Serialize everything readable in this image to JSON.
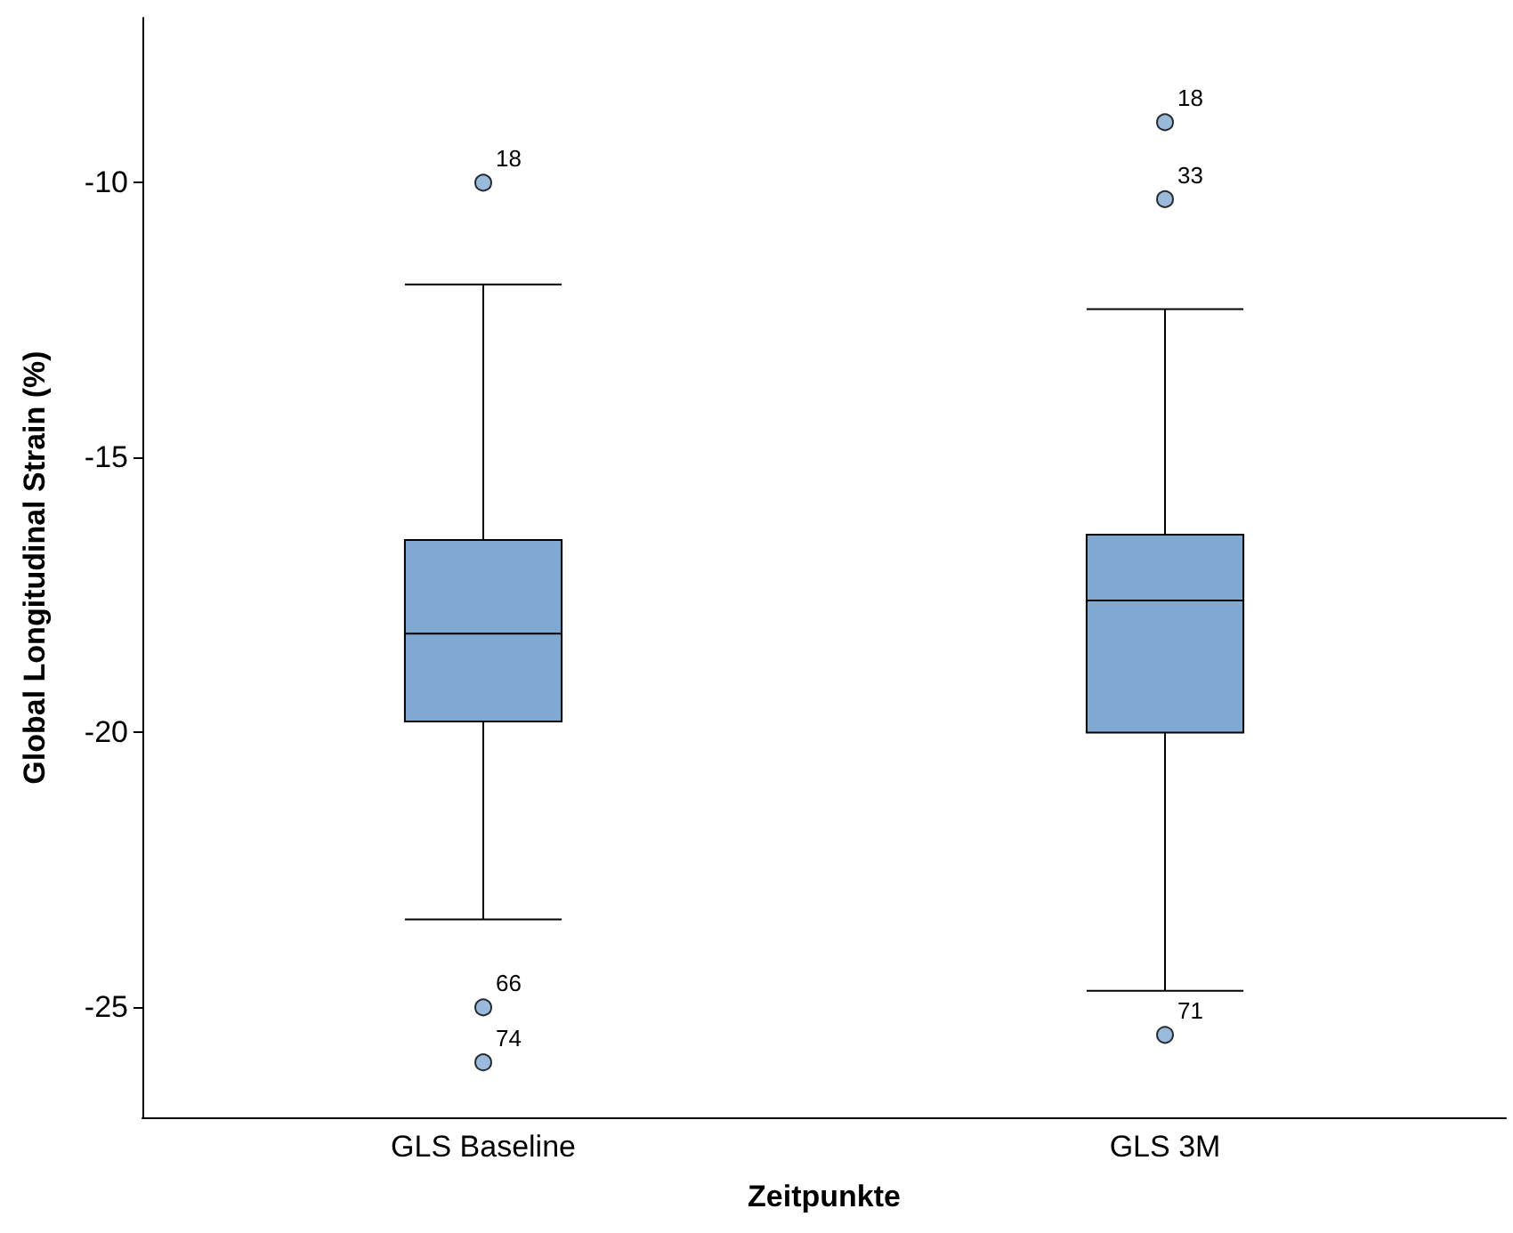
{
  "chart_data": {
    "type": "box",
    "xlabel": "Zeitpunkte",
    "ylabel": "Global Longitudinal Strain (%)",
    "categories": [
      "GLS Baseline",
      "GLS 3M"
    ],
    "color": "#7fa9d1",
    "boxes": [
      {
        "low": -23.4,
        "q1": -19.8,
        "median": -18.2,
        "q3": -16.5,
        "high": -11.85,
        "outliers": [
          -10,
          -25,
          -26
        ]
      },
      {
        "low": -24.7,
        "q1": -20,
        "median": -17.6,
        "q3": -16.4,
        "high": -12.3,
        "outliers": [
          -8.9,
          -10.3,
          -25.5
        ]
      }
    ],
    "ylim": [
      -27,
      -7
    ],
    "yticks": [
      -25,
      -20,
      -15,
      -10
    ],
    "grid": false,
    "annotations": [
      "18",
      "66",
      "74",
      "18",
      "33",
      "71"
    ]
  }
}
